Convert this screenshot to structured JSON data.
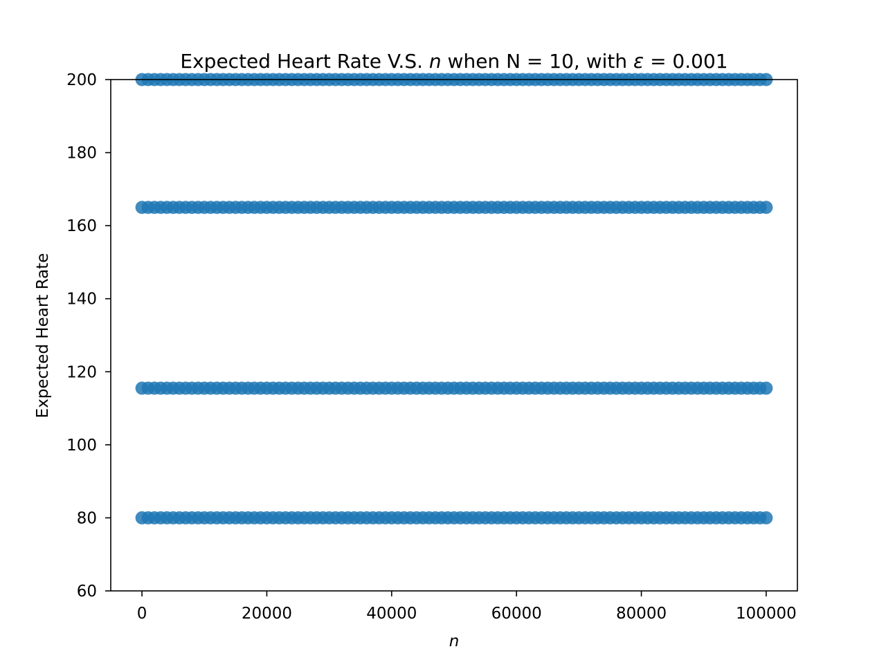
{
  "chart_data": {
    "type": "scatter",
    "title": {
      "prefix": "Expected Heart Rate V.S. ",
      "n_symbol": "n",
      "middle": " when N = 10, with ",
      "epsilon_symbol": "ε",
      "suffix": " = 0.001"
    },
    "xlabel": "n",
    "ylabel": "Expected Heart Rate",
    "xlim": [
      -5000,
      105000
    ],
    "ylim": [
      60,
      200
    ],
    "x_ticks": [
      0,
      20000,
      40000,
      60000,
      80000,
      100000
    ],
    "x_tick_labels": [
      "0",
      "20000",
      "40000",
      "60000",
      "80000",
      "100000"
    ],
    "y_ticks": [
      60,
      80,
      100,
      120,
      140,
      160,
      180,
      200
    ],
    "y_tick_labels": [
      "60",
      "80",
      "100",
      "120",
      "140",
      "160",
      "180",
      "200"
    ],
    "grid": false,
    "point_color": "#1f77b4",
    "x_range": [
      0,
      100000
    ],
    "y_levels": [
      80,
      115.5,
      165,
      200
    ]
  }
}
